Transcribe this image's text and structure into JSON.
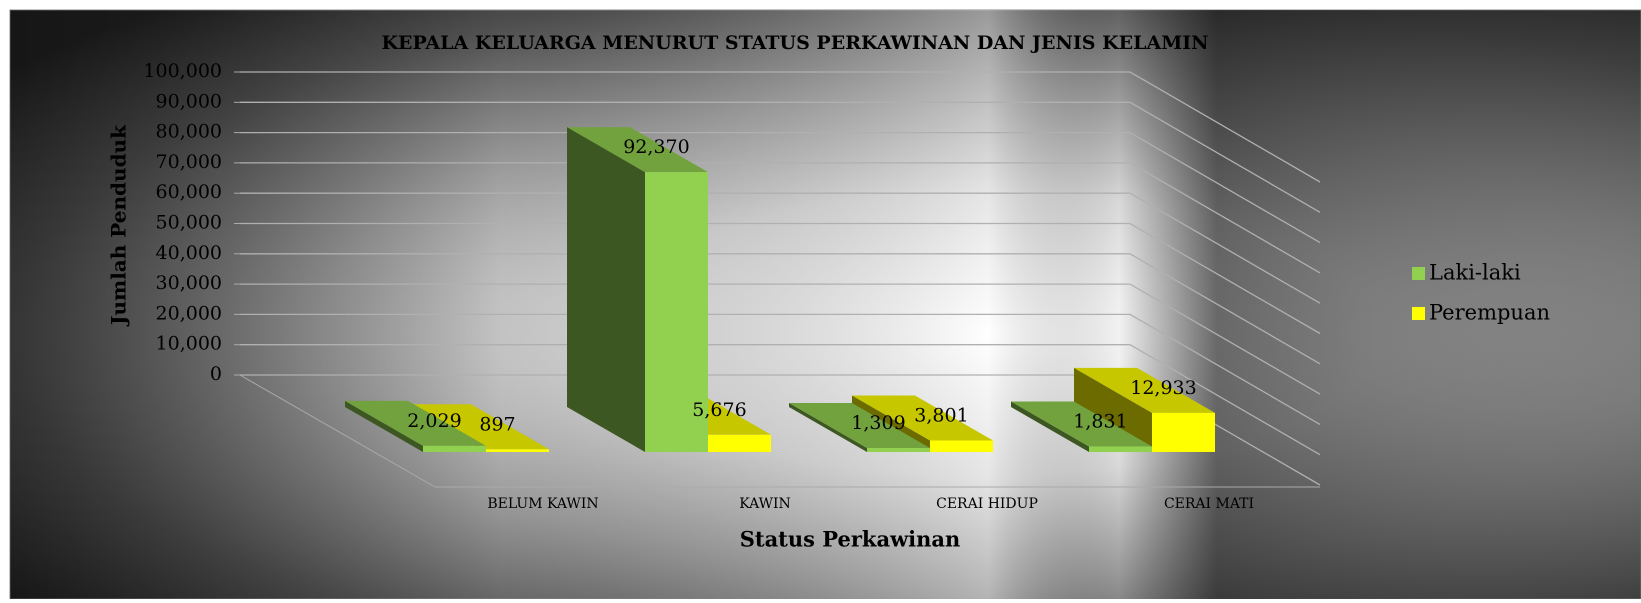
{
  "chart_data": {
    "type": "bar3d",
    "title": "KEPALA KELUARGA MENURUT STATUS PERKAWINAN DAN JENIS KELAMIN",
    "x_label": "Status Perkawinan",
    "y_label": "Jumlah Penduduk",
    "categories": [
      "BELUM KAWIN",
      "KAWIN",
      "CERAI HIDUP",
      "CERAI MATI"
    ],
    "series": [
      {
        "name": "Laki-laki",
        "color": "#92d050",
        "values": [
          2029,
          92370,
          1309,
          1831
        ],
        "value_labels": [
          "2,029",
          "92,370",
          "1,309",
          "1,831"
        ]
      },
      {
        "name": "Perempuan",
        "color": "#ffff00",
        "values": [
          897,
          5676,
          3801,
          12933
        ],
        "value_labels": [
          "897",
          "5,676",
          "3,801",
          "12,933"
        ]
      }
    ],
    "ylim": [
      0,
      100000
    ],
    "yticks": [
      0,
      {
        "value": 10000,
        "label": "10,000"
      },
      {
        "value": 20000,
        "label": "20,000"
      },
      {
        "value": 30000,
        "label": "30,000"
      },
      {
        "value": 40000,
        "label": "40,000"
      },
      {
        "value": 50000,
        "label": "50,000"
      },
      {
        "value": 60000,
        "label": "60,000"
      },
      {
        "value": 70000,
        "label": "70,000"
      },
      {
        "value": 80000,
        "label": "80,000"
      },
      {
        "value": 90000,
        "label": "90,000"
      },
      {
        "value": 100000,
        "label": "100,000"
      }
    ],
    "grid": true,
    "legend": "right"
  }
}
